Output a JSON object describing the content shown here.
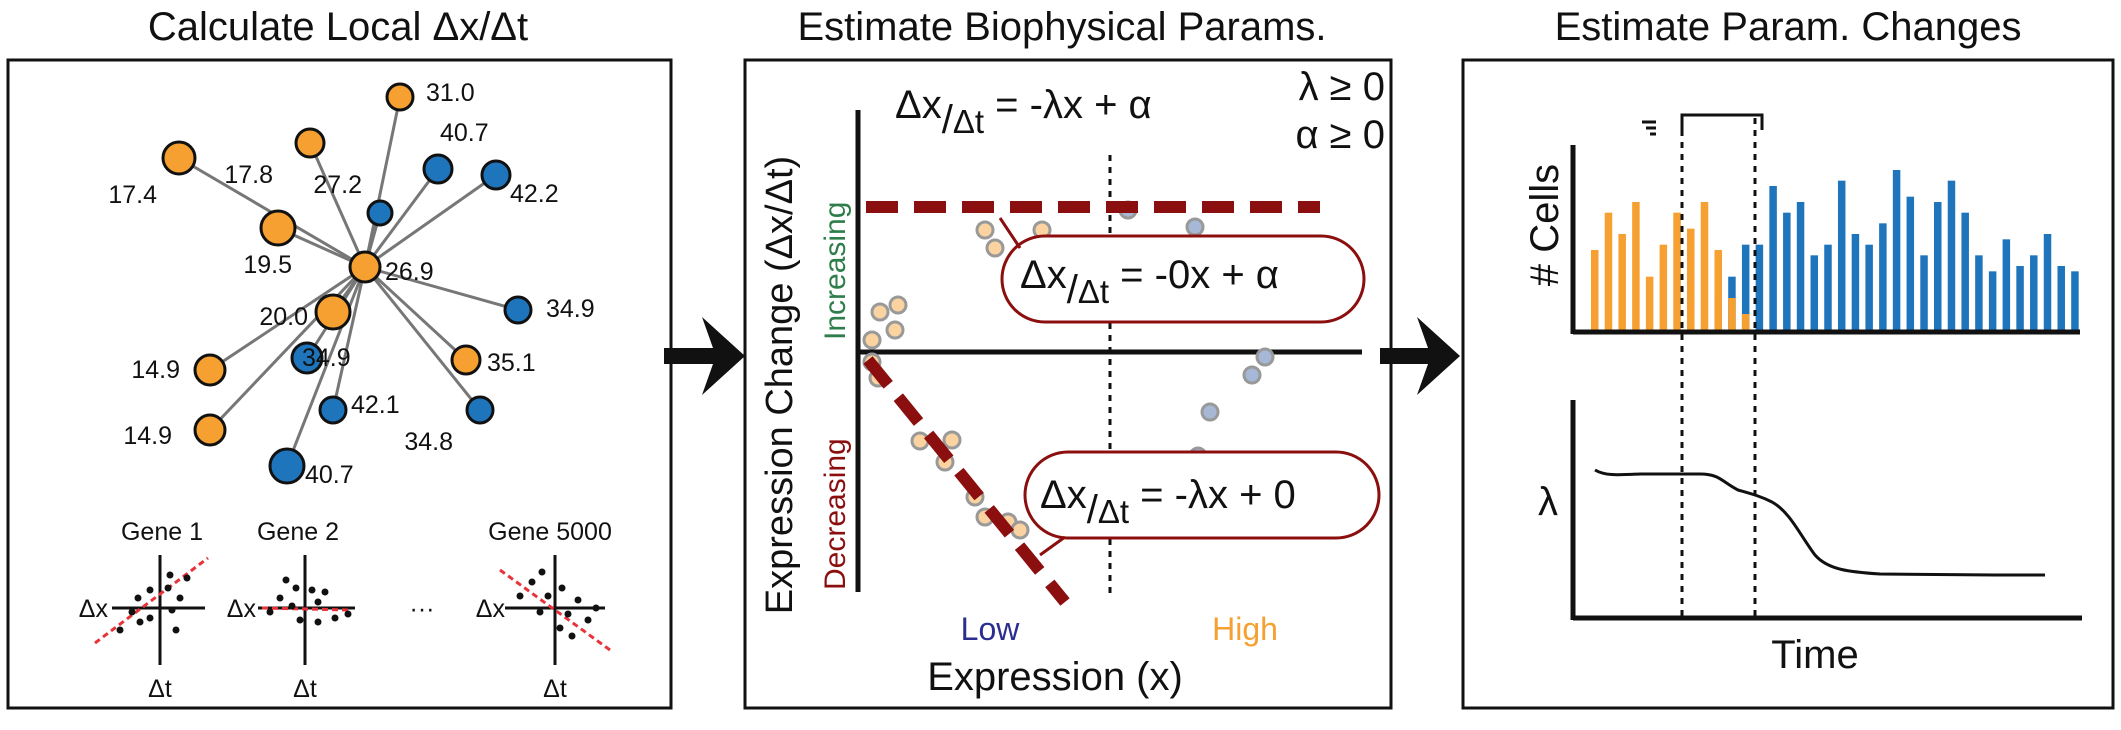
{
  "panel1": {
    "title": "Calculate Local Δx/Δt",
    "center_value": "26.9",
    "neighbors": [
      {
        "value": "31.0",
        "group": "high"
      },
      {
        "value": "17.8",
        "group": "high"
      },
      {
        "value": "27.2",
        "group": "low"
      },
      {
        "value": "40.7",
        "group": "low"
      },
      {
        "value": "42.2",
        "group": "low"
      },
      {
        "value": "17.4",
        "group": "high"
      },
      {
        "value": "19.5",
        "group": "high"
      },
      {
        "value": "34.9",
        "group": "low"
      },
      {
        "value": "20.0",
        "group": "high"
      },
      {
        "value": "14.9",
        "group": "high"
      },
      {
        "value": "34.9",
        "group": "low"
      },
      {
        "value": "35.1",
        "group": "high"
      },
      {
        "value": "42.1",
        "group": "low"
      },
      {
        "value": "14.9",
        "group": "high"
      },
      {
        "value": "34.8",
        "group": "low"
      },
      {
        "value": "40.7",
        "group": "low"
      }
    ],
    "genes": [
      "Gene 1",
      "Gene 2",
      "Gene 5000"
    ],
    "ellipsis": "···",
    "x_axis": "Δt",
    "y_axis": "Δx"
  },
  "panel2": {
    "title": "Estimate Biophysical Params.",
    "main_equation": [
      "Δx",
      "/",
      "Δt",
      " = -λx + α"
    ],
    "constraint_lambda": "λ ≥ 0",
    "constraint_alpha": "α ≥ 0",
    "increasing_label": "Increasing",
    "decreasing_label": "Decreasing",
    "ylabel": "Expression Change (Δx/Δt)",
    "xlabel": "Expression (x)",
    "low_label": "Low",
    "high_label": "High",
    "callout_top": [
      "Δx",
      "/",
      "Δt",
      " = -0x + α"
    ],
    "callout_bottom": [
      "Δx",
      "/",
      "Δt",
      " = -λx + 0"
    ]
  },
  "panel3": {
    "title": "Estimate Param. Changes",
    "ylabel_top": "# Cells",
    "ylabel_bottom": "λ",
    "xlabel": "Time"
  },
  "colors": {
    "high": "#f5a030",
    "low": "#1f75bb",
    "dark_red": "#8b0f0f",
    "green": "#2e7d4a",
    "dash_red": "#e8333a",
    "low_text": "#2a2e8f"
  },
  "chart_data": {
    "type": "bar",
    "series": [
      {
        "values": [
          15,
          22,
          18,
          24,
          10,
          16,
          22,
          19,
          24,
          15,
          6,
          3,
          0,
          0,
          0,
          0,
          0,
          0,
          0,
          0,
          0,
          0,
          0,
          0,
          0,
          0,
          0,
          0,
          0,
          0,
          0,
          0,
          0,
          0,
          0,
          0
        ]
      },
      {
        "values": [
          0,
          0,
          0,
          0,
          0,
          0,
          0,
          0,
          0,
          6,
          10,
          16,
          16,
          27,
          22,
          24,
          14,
          16,
          28,
          18,
          16,
          20,
          30,
          25,
          14,
          24,
          28,
          22,
          14,
          11,
          17,
          12,
          14,
          18,
          12,
          11
        ]
      }
    ],
    "grid": false
  }
}
